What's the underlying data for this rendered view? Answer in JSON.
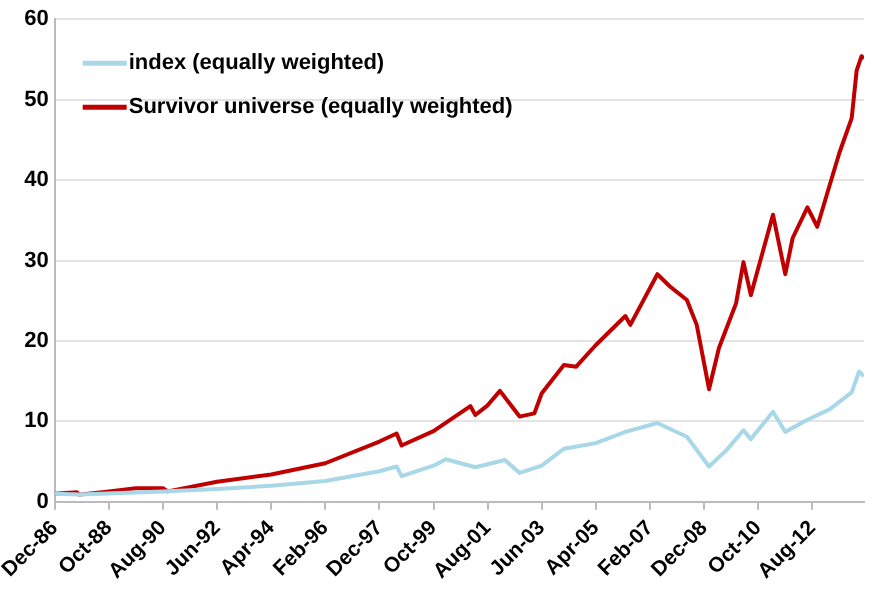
{
  "chart_data": {
    "type": "line",
    "legend": "top left",
    "grid": "y",
    "line_style": "solid",
    "marker": "none",
    "xlim": [
      "1986-12",
      "2014-05"
    ],
    "xticks": [
      {
        "value": "1986-12",
        "label": "Dec-86"
      },
      {
        "value": "1988-10",
        "label": "Oct-88"
      },
      {
        "value": "1990-08",
        "label": "Aug-90"
      },
      {
        "value": "1992-06",
        "label": "Jun-92"
      },
      {
        "value": "1994-04",
        "label": "Apr-94"
      },
      {
        "value": "1996-02",
        "label": "Feb-96"
      },
      {
        "value": "1997-12",
        "label": "Dec-97"
      },
      {
        "value": "1999-10",
        "label": "Oct-99"
      },
      {
        "value": "2001-08",
        "label": "Aug-01"
      },
      {
        "value": "2003-06",
        "label": "Jun-03"
      },
      {
        "value": "2005-04",
        "label": "Apr-05"
      },
      {
        "value": "2007-02",
        "label": "Feb-07"
      },
      {
        "value": "2008-12",
        "label": "Dec-08"
      },
      {
        "value": "2010-10",
        "label": "Oct-10"
      },
      {
        "value": "2012-08",
        "label": "Aug-12"
      }
    ],
    "ylim": [
      0,
      60
    ],
    "yticks": [
      0,
      10,
      20,
      30,
      40,
      50,
      60
    ],
    "series": [
      {
        "name": "index (equally weighted)",
        "color": "#a8d8e8",
        "x": [
          "1986-12",
          "1987-10",
          "1990-08",
          "1992-06",
          "1994-04",
          "1996-02",
          "1997-12",
          "1998-07",
          "1998-09",
          "1999-10",
          "2000-03",
          "2001-03",
          "2002-03",
          "2002-09",
          "2003-06",
          "2004-03",
          "2005-04",
          "2006-04",
          "2007-05",
          "2008-05",
          "2009-02",
          "2009-09",
          "2010-04",
          "2010-07",
          "2011-04",
          "2011-09",
          "2012-06",
          "2013-03",
          "2013-12",
          "2014-03",
          "2014-05"
        ],
        "values": [
          1.0,
          0.9,
          1.3,
          1.6,
          2.0,
          2.6,
          3.8,
          4.4,
          3.2,
          4.5,
          5.3,
          4.3,
          5.2,
          3.6,
          4.5,
          6.6,
          7.3,
          8.7,
          9.8,
          8.1,
          4.4,
          6.4,
          8.9,
          7.8,
          11.2,
          8.7,
          10.2,
          11.5,
          13.6,
          16.2,
          15.6
        ]
      },
      {
        "name": "Survivor universe (equally weighted)",
        "color": "#c00000",
        "x": [
          "1986-12",
          "1987-09",
          "1987-10",
          "1988-10",
          "1989-09",
          "1990-08",
          "1990-10",
          "1992-06",
          "1994-04",
          "1996-02",
          "1997-12",
          "1998-07",
          "1998-09",
          "1999-10",
          "2001-01",
          "2001-03",
          "2001-08",
          "2002-01",
          "2002-09",
          "2003-03",
          "2003-06",
          "2004-03",
          "2004-08",
          "2005-04",
          "2006-04",
          "2006-06",
          "2007-05",
          "2007-10",
          "2008-05",
          "2008-09",
          "2009-02",
          "2009-06",
          "2010-01",
          "2010-04",
          "2010-07",
          "2011-04",
          "2011-09",
          "2011-12",
          "2012-06",
          "2012-10",
          "2013-02",
          "2013-07",
          "2013-12",
          "2014-02",
          "2014-04",
          "2014-05"
        ],
        "values": [
          1.0,
          1.2,
          0.9,
          1.3,
          1.7,
          1.7,
          1.3,
          2.5,
          3.4,
          4.8,
          7.5,
          8.5,
          7.0,
          8.8,
          11.9,
          10.8,
          12.0,
          13.8,
          10.6,
          11.0,
          13.5,
          17.0,
          16.8,
          19.5,
          23.1,
          22.0,
          28.3,
          26.8,
          25.1,
          22.0,
          14.0,
          19.1,
          24.7,
          29.8,
          25.7,
          35.7,
          28.3,
          32.8,
          36.6,
          34.2,
          38.3,
          43.4,
          47.7,
          53.6,
          55.4,
          55.1
        ]
      }
    ]
  }
}
